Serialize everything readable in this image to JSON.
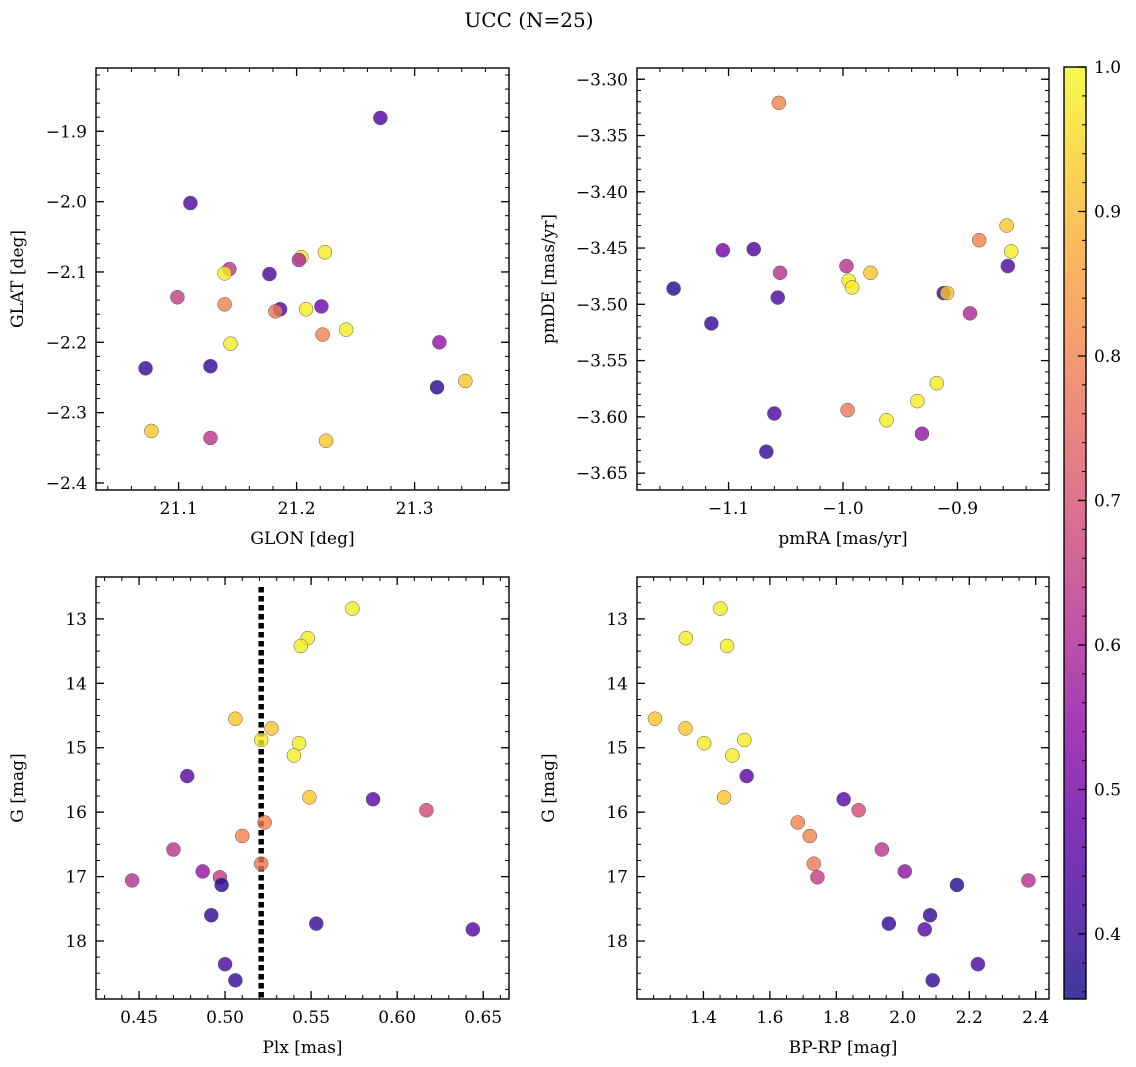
{
  "suptitle": "UCC (N=25)",
  "colorbar": {
    "colormap": "plasma",
    "range": [
      0.355,
      1.0
    ],
    "tick_labels": [
      "0.4",
      "0.5",
      "0.6",
      "0.7",
      "0.8",
      "0.9",
      "1.0"
    ],
    "tick_values": [
      0.4,
      0.5,
      0.6,
      0.7,
      0.8,
      0.9,
      1.0
    ]
  },
  "chart_data": [
    {
      "type": "scatter",
      "xlabel": "GLON [deg]",
      "ylabel": "GLAT [deg]",
      "xlim": [
        21.03,
        21.38
      ],
      "ylim": [
        -2.41,
        -1.81
      ],
      "x_ticks": [
        21.1,
        21.2,
        21.3
      ],
      "x_tick_labels": [
        "21.1",
        "21.2",
        "21.3"
      ],
      "y_ticks": [
        -2.4,
        -2.3,
        -2.2,
        -2.1,
        -2.0,
        -1.9
      ],
      "y_tick_labels": [
        "−2.4",
        "−2.3",
        "−2.2",
        "−2.1",
        "−2.0",
        "−1.9"
      ],
      "x": [
        21.271,
        21.11,
        21.224,
        21.204,
        21.202,
        21.143,
        21.177,
        21.139,
        21.099,
        21.139,
        21.186,
        21.182,
        21.208,
        21.221,
        21.242,
        21.222,
        21.321,
        21.144,
        21.072,
        21.127,
        21.319,
        21.343,
        21.077,
        21.127,
        21.225
      ],
      "y": [
        -1.881,
        -2.002,
        -2.072,
        -2.079,
        -2.083,
        -2.096,
        -2.103,
        -2.102,
        -2.136,
        -2.146,
        -2.153,
        -2.156,
        -2.153,
        -2.149,
        -2.182,
        -2.189,
        -2.2,
        -2.202,
        -2.237,
        -2.234,
        -2.264,
        -2.255,
        -2.326,
        -2.336,
        -2.34
      ],
      "c": [
        0.44,
        0.44,
        0.98,
        0.98,
        0.6,
        0.63,
        0.43,
        0.98,
        0.65,
        0.8,
        0.43,
        0.78,
        0.98,
        0.49,
        0.98,
        0.8,
        0.55,
        0.98,
        0.4,
        0.4,
        0.38,
        0.92,
        0.92,
        0.63,
        0.92
      ]
    },
    {
      "type": "scatter",
      "xlabel": "pmRA [mas/yr]",
      "ylabel": "pmDE [mas/yr]",
      "xlim": [
        -1.18,
        -0.82
      ],
      "ylim": [
        -3.665,
        -3.29
      ],
      "x_ticks": [
        -1.1,
        -1.0,
        -0.9
      ],
      "x_tick_labels": [
        "−1.1",
        "−1.0",
        "−0.9"
      ],
      "y_ticks": [
        -3.65,
        -3.6,
        -3.55,
        -3.5,
        -3.45,
        -3.4,
        -3.35,
        -3.3
      ],
      "y_tick_labels": [
        "−3.65",
        "−3.60",
        "−3.55",
        "−3.50",
        "−3.45",
        "−3.40",
        "−3.35",
        "−3.30"
      ],
      "x": [
        -1.056,
        -1.105,
        -1.078,
        -1.055,
        -1.148,
        -1.115,
        -1.057,
        -0.997,
        -0.995,
        -0.992,
        -0.976,
        -0.912,
        -0.909,
        -0.881,
        -0.857,
        -0.853,
        -0.856,
        -0.889,
        -0.918,
        -0.935,
        -0.962,
        -0.996,
        -0.931,
        -1.06,
        -1.067
      ],
      "y": [
        -3.321,
        -3.452,
        -3.451,
        -3.472,
        -3.486,
        -3.517,
        -3.494,
        -3.466,
        -3.479,
        -3.485,
        -3.472,
        -3.49,
        -3.49,
        -3.443,
        -3.43,
        -3.453,
        -3.466,
        -3.508,
        -3.57,
        -3.586,
        -3.603,
        -3.594,
        -3.615,
        -3.597,
        -3.631
      ],
      "c": [
        0.8,
        0.5,
        0.43,
        0.62,
        0.38,
        0.4,
        0.43,
        0.62,
        0.98,
        0.98,
        0.92,
        0.4,
        0.92,
        0.8,
        0.92,
        0.98,
        0.43,
        0.6,
        0.98,
        0.98,
        0.98,
        0.78,
        0.55,
        0.43,
        0.4
      ]
    },
    {
      "type": "scatter",
      "xlabel": "Plx [mas]",
      "ylabel": "G [mag]",
      "xlim": [
        0.425,
        0.665
      ],
      "ylim": [
        18.9,
        12.35
      ],
      "x_ticks": [
        0.45,
        0.5,
        0.55,
        0.6,
        0.65
      ],
      "x_tick_labels": [
        "0.45",
        "0.50",
        "0.55",
        "0.60",
        "0.65"
      ],
      "y_ticks": [
        13,
        14,
        15,
        16,
        17,
        18
      ],
      "y_tick_labels": [
        "13",
        "14",
        "15",
        "16",
        "17",
        "18"
      ],
      "vline": 0.521,
      "x": [
        0.574,
        0.548,
        0.544,
        0.506,
        0.527,
        0.521,
        0.543,
        0.54,
        0.478,
        0.549,
        0.586,
        0.617,
        0.523,
        0.51,
        0.47,
        0.521,
        0.487,
        0.497,
        0.498,
        0.446,
        0.492,
        0.553,
        0.644,
        0.5,
        0.506
      ],
      "y": [
        12.84,
        13.3,
        13.42,
        14.55,
        14.7,
        14.88,
        14.93,
        15.12,
        15.44,
        15.77,
        15.8,
        15.97,
        16.16,
        16.37,
        16.58,
        16.8,
        16.92,
        17.01,
        17.13,
        17.06,
        17.6,
        17.73,
        17.82,
        18.36,
        18.61
      ],
      "c": [
        0.98,
        0.98,
        0.98,
        0.92,
        0.92,
        0.98,
        0.98,
        0.98,
        0.45,
        0.92,
        0.45,
        0.68,
        0.8,
        0.8,
        0.63,
        0.78,
        0.55,
        0.65,
        0.38,
        0.62,
        0.4,
        0.4,
        0.45,
        0.43,
        0.4
      ]
    },
    {
      "type": "scatter",
      "xlabel": "BP-RP [mag]",
      "ylabel": "G [mag]",
      "xlim": [
        1.2,
        2.44
      ],
      "ylim": [
        18.9,
        12.35
      ],
      "x_ticks": [
        1.4,
        1.6,
        1.8,
        2.0,
        2.2,
        2.4
      ],
      "x_tick_labels": [
        "1.4",
        "1.6",
        "1.8",
        "2.0",
        "2.2",
        "2.4"
      ],
      "y_ticks": [
        13,
        14,
        15,
        16,
        17,
        18
      ],
      "y_tick_labels": [
        "13",
        "14",
        "15",
        "16",
        "17",
        "18"
      ],
      "x": [
        1.451,
        1.347,
        1.471,
        1.254,
        1.346,
        1.402,
        1.523,
        1.487,
        1.53,
        1.462,
        1.822,
        1.867,
        1.684,
        1.72,
        1.937,
        1.732,
        2.006,
        1.743,
        2.163,
        2.378,
        2.082,
        1.958,
        2.066,
        2.226,
        2.09
      ],
      "y": [
        12.84,
        13.3,
        13.42,
        14.55,
        14.7,
        14.93,
        14.88,
        15.12,
        15.44,
        15.77,
        15.8,
        15.97,
        16.16,
        16.37,
        16.58,
        16.8,
        16.92,
        17.01,
        17.13,
        17.06,
        17.6,
        17.73,
        17.82,
        18.36,
        18.61
      ],
      "c": [
        0.98,
        0.98,
        0.98,
        0.92,
        0.92,
        0.98,
        0.98,
        0.98,
        0.45,
        0.92,
        0.45,
        0.68,
        0.8,
        0.8,
        0.63,
        0.78,
        0.55,
        0.65,
        0.38,
        0.62,
        0.4,
        0.4,
        0.45,
        0.43,
        0.4
      ]
    }
  ]
}
